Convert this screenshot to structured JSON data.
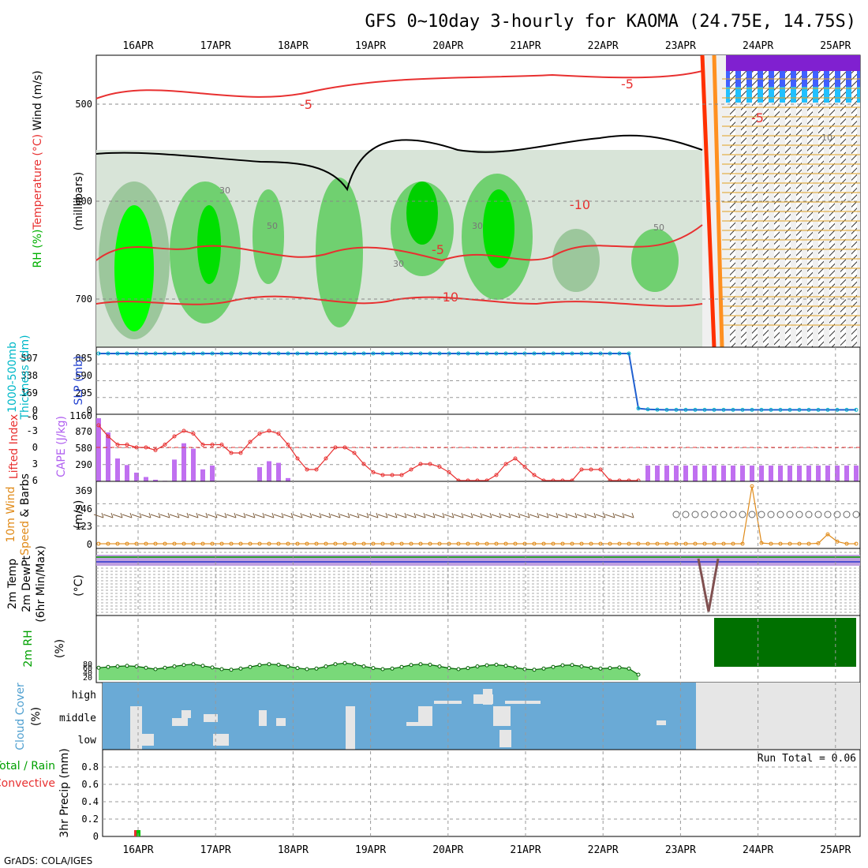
{
  "header": {
    "title": "GFS 0~10day 3-hourly for KAOMA (24.75E, 14.75S)",
    "credit": "GrADS: COLA/IGES"
  },
  "chart_data": {
    "type": "meteogram",
    "x_dates": [
      "16APR",
      "17APR",
      "18APR",
      "19APR",
      "20APR",
      "21APR",
      "22APR",
      "23APR",
      "24APR",
      "25APR"
    ],
    "panels": [
      {
        "id": "upper_air",
        "labels": [
          "RH (%)",
          "Temperature (°C)",
          "Wind (m/s)"
        ],
        "label_colors": [
          "#00b000",
          "#e83030",
          "#000000"
        ],
        "ylabel": "(milllibars)",
        "y_ticks": [
          "500",
          "600",
          "700"
        ],
        "contour_labels": [
          "-5",
          "-5",
          "-5",
          "-10",
          "-10",
          "-5",
          "30",
          "30",
          "50",
          "30",
          "50",
          "10"
        ]
      },
      {
        "id": "slp_thickness",
        "labels": [
          "1000-500mb",
          "Thickness (dm)",
          "SLP (mb)"
        ],
        "label_colors": [
          "#00b8c8",
          "#00b8c8",
          "#2040d0"
        ],
        "y_ticks_left": [
          "0",
          "169",
          "338",
          "507"
        ],
        "y_ticks_right": [
          "1160",
          "0",
          "295",
          "590",
          "885"
        ],
        "slp_values": [
          885,
          885,
          885,
          885,
          885,
          885,
          885,
          885,
          885,
          885,
          885,
          885,
          885,
          885,
          885,
          885,
          885,
          885,
          885,
          885,
          885,
          885,
          885,
          885,
          885,
          885,
          885,
          885,
          885,
          885,
          885,
          885,
          885,
          885,
          885,
          885,
          885,
          885,
          885,
          885,
          885,
          885,
          885,
          885,
          885,
          885,
          885,
          885,
          885,
          885,
          885,
          885,
          885,
          885,
          885,
          885,
          885,
          30,
          15,
          10,
          8,
          8,
          8,
          8,
          8,
          8,
          8,
          8,
          8,
          8,
          8,
          8,
          8,
          8,
          8,
          8,
          8,
          8,
          8,
          8,
          8
        ]
      },
      {
        "id": "cape_li",
        "labels": [
          "Lifted Index",
          "CAPE (J/kg)"
        ],
        "label_colors": [
          "#e83030",
          "#b060f0"
        ],
        "y_ticks_left": [
          "6",
          "3",
          "0",
          "-3",
          "-6"
        ],
        "y_ticks_right": [
          "290",
          "580",
          "870",
          "1160"
        ],
        "cape_values": [
          1160,
          900,
          420,
          300,
          160,
          80,
          30,
          10,
          400,
          700,
          600,
          220,
          290,
          0,
          0,
          0,
          0,
          260,
          370,
          340,
          60,
          0,
          0,
          0,
          0,
          0,
          0,
          0,
          0,
          0,
          0,
          0,
          0,
          0,
          0,
          0,
          0,
          0,
          0,
          0,
          0,
          0,
          0,
          0,
          0,
          0,
          0,
          0,
          0,
          0,
          0,
          0,
          0,
          0,
          0,
          0,
          0,
          0,
          290,
          290,
          290,
          290,
          290,
          290,
          290,
          290,
          290,
          290,
          290,
          290,
          290,
          290,
          290,
          290,
          290,
          290,
          290,
          290,
          290,
          290,
          290
        ],
        "li_values": [
          -4,
          -2,
          -0.5,
          -0.5,
          0,
          0,
          0.5,
          -0.5,
          -2,
          -3,
          -2.5,
          -0.5,
          -0.5,
          -0.5,
          1,
          1,
          -1,
          -2.5,
          -3,
          -2.5,
          -0.5,
          2,
          4,
          4,
          2,
          0,
          0,
          1,
          3,
          4.5,
          5,
          5,
          5,
          4,
          3,
          3,
          3.5,
          4.5,
          6,
          6,
          6,
          6,
          5,
          3,
          2,
          3.5,
          5,
          6,
          6,
          6,
          6,
          4,
          4,
          4,
          6,
          6,
          6,
          6,
          6,
          6,
          6,
          6,
          6,
          6,
          6,
          6,
          6,
          6,
          6,
          6,
          6,
          6,
          6,
          6,
          6,
          6,
          6,
          6,
          6,
          6,
          6
        ]
      },
      {
        "id": "wind10m",
        "labels": [
          "10m Wind",
          "Speed",
          "& Barbs"
        ],
        "label_colors": [
          "#e08a18",
          "#e08a18",
          "#000000"
        ],
        "ylabel": "(m/s)",
        "y_ticks": [
          "0",
          "123",
          "246",
          "369"
        ],
        "speed_values": [
          5,
          5,
          5,
          5,
          5,
          5,
          5,
          5,
          5,
          5,
          5,
          5,
          5,
          5,
          5,
          5,
          5,
          5,
          5,
          5,
          5,
          5,
          5,
          5,
          5,
          5,
          5,
          5,
          5,
          5,
          5,
          5,
          5,
          5,
          5,
          5,
          5,
          5,
          5,
          5,
          5,
          5,
          5,
          5,
          5,
          5,
          5,
          5,
          5,
          5,
          5,
          5,
          5,
          5,
          5,
          5,
          5,
          5,
          5,
          5,
          5,
          5,
          5,
          5,
          5,
          5,
          5,
          5,
          5,
          400,
          10,
          5,
          5,
          5,
          5,
          5,
          8,
          70,
          20,
          5,
          5
        ]
      },
      {
        "id": "temp2m",
        "labels": [
          "2m Temp",
          "2m DewPt",
          "(6hr Min/Max)"
        ],
        "label_colors": [
          "#000000",
          "#000000",
          "#000000"
        ],
        "ylabel": "(°C)"
      },
      {
        "id": "rh2m",
        "labels": [
          "2m RH"
        ],
        "label_colors": [
          "#00a000"
        ],
        "ylabel": "(%)",
        "y_ticks": [
          "20",
          "40",
          "60",
          "80"
        ],
        "rh_values": [
          45,
          48,
          50,
          52,
          50,
          45,
          40,
          45,
          50,
          55,
          58,
          52,
          46,
          40,
          38,
          42,
          48,
          55,
          58,
          56,
          50,
          44,
          40,
          42,
          50,
          58,
          62,
          58,
          50,
          44,
          40,
          42,
          48,
          55,
          58,
          56,
          50,
          44,
          40,
          44,
          50,
          54,
          56,
          52,
          46,
          40,
          38,
          42,
          48,
          54,
          55,
          50,
          45,
          42,
          44,
          46,
          42,
          20,
          450,
          450,
          450,
          450,
          450,
          450,
          450,
          450,
          450,
          450,
          450,
          450,
          450,
          450,
          450,
          450,
          450,
          450,
          450,
          450,
          450,
          450,
          450
        ]
      },
      {
        "id": "cloud",
        "labels": [
          "Cloud Cover",
          "(%)"
        ],
        "label_colors": [
          "#50a0d0",
          "#000000"
        ],
        "y_ticks": [
          "high",
          "middle",
          "low"
        ]
      },
      {
        "id": "precip",
        "labels": [
          "Total / Rain",
          "Convective",
          "3hr Precip (mm)"
        ],
        "label_colors": [
          "#00a000",
          "#e83030",
          "#000000"
        ],
        "y_ticks": [
          "0",
          "0.2",
          "0.4",
          "0.6",
          "0.8"
        ],
        "run_total": "Run Total = 0.06",
        "precip_values": [
          {
            "date": "16APR",
            "value": 0.02
          }
        ]
      }
    ]
  }
}
